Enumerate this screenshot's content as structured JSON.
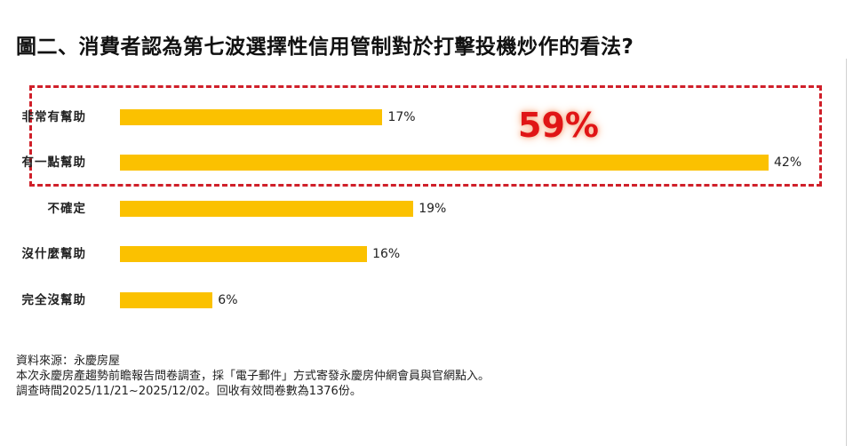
{
  "title": "圖二、消費者認為第七波選擇性信用管制對於打擊投機炒作的看法?",
  "callout": {
    "value": "59%",
    "color": "#e01515",
    "box_color": "#d0202a",
    "covers": [
      "非常有幫助",
      "有一點幫助"
    ]
  },
  "chart_data": {
    "type": "bar",
    "orientation": "horizontal",
    "title": "圖二、消費者認為第七波選擇性信用管制對於打擊投機炒作的看法?",
    "categories": [
      "非常有幫助",
      "有一點幫助",
      "不確定",
      "沒什麼幫助",
      "完全沒幫助"
    ],
    "values": [
      17,
      42,
      19,
      16,
      6
    ],
    "value_labels": [
      "17%",
      "42%",
      "19%",
      "16%",
      "6%"
    ],
    "unit": "%",
    "bar_color": "#fbc100",
    "xlabel": "",
    "ylabel": "",
    "grid": false,
    "legend": null,
    "annotations": [
      {
        "text": "59%",
        "description": "sum of 非常有幫助 and 有一點幫助, highlighted with red dashed box"
      }
    ]
  },
  "rows": [
    {
      "label": "非常有幫助",
      "value": "17%",
      "pct": 17
    },
    {
      "label": "有一點幫助",
      "value": "42%",
      "pct": 42
    },
    {
      "label": "不確定",
      "value": "19%",
      "pct": 19
    },
    {
      "label": "沒什麼幫助",
      "value": "16%",
      "pct": 16
    },
    {
      "label": "完全沒幫助",
      "value": "6%",
      "pct": 6
    }
  ],
  "notes": {
    "source": "資料來源：永慶房屋",
    "method": "本次永慶房產趨勢前瞻報告問卷調查，採「電子郵件」方式寄發永慶房仲網會員與官網點入。",
    "period": "調查時間2025/11/21~2025/12/02。回收有效問卷數為1376份。"
  }
}
